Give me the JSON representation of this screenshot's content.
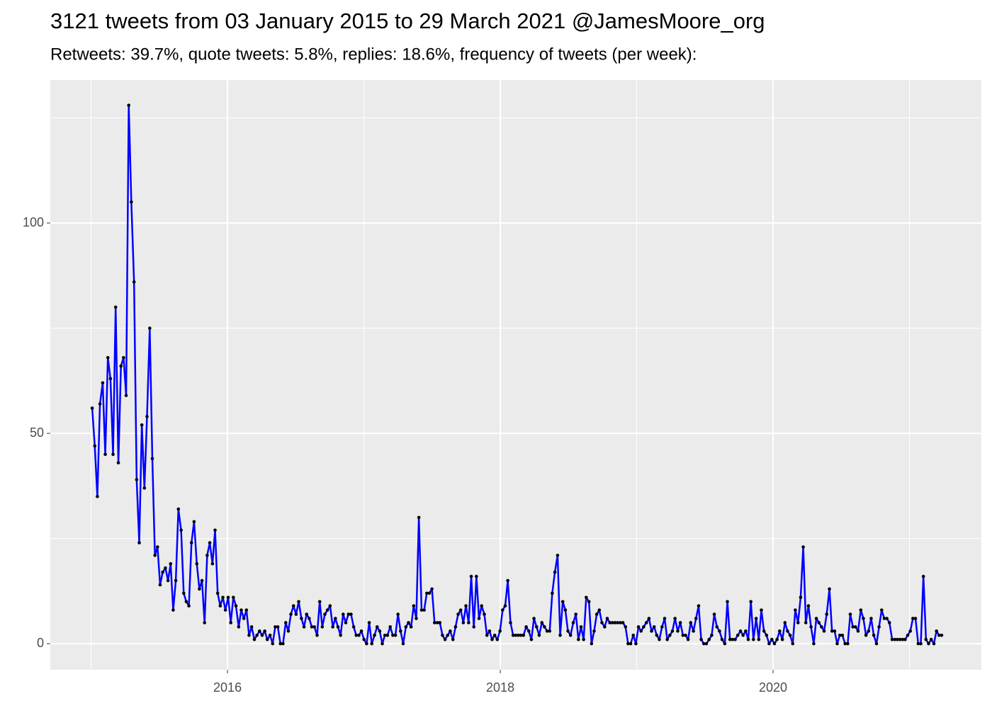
{
  "chart_data": {
    "type": "line",
    "title": "3121 tweets from 03 January 2015 to 29 March 2021 @JamesMoore_org",
    "subtitle": "Retweets: 39.7%, quote tweets: 5.8%, replies: 18.6%, frequency of tweets (per week):",
    "color": "#0000ff",
    "point_color": "#000000",
    "grid": true,
    "xlim": [
      2014.701,
      2021.527
    ],
    "xticks": [
      2016,
      2018,
      2020
    ],
    "minor_xticks": [
      2015,
      2017,
      2019,
      2021
    ],
    "ylim": [
      -6.2,
      134
    ],
    "yticks": [
      0,
      50,
      100
    ],
    "minor_yticks": [
      25,
      75,
      125
    ],
    "x": [
      2015.008,
      2015.027,
      2015.046,
      2015.065,
      2015.085,
      2015.104,
      2015.123,
      2015.142,
      2015.161,
      2015.18,
      2015.2,
      2015.219,
      2015.238,
      2015.257,
      2015.276,
      2015.295,
      2015.315,
      2015.334,
      2015.353,
      2015.372,
      2015.391,
      2015.41,
      2015.43,
      2015.449,
      2015.468,
      2015.487,
      2015.506,
      2015.525,
      2015.545,
      2015.564,
      2015.583,
      2015.602,
      2015.621,
      2015.64,
      2015.66,
      2015.679,
      2015.698,
      2015.717,
      2015.736,
      2015.755,
      2015.775,
      2015.794,
      2015.813,
      2015.832,
      2015.851,
      2015.87,
      2015.89,
      2015.909,
      2015.928,
      2015.947,
      2015.966,
      2015.985,
      2016.005,
      2016.024,
      2016.043,
      2016.062,
      2016.082,
      2016.101,
      2016.12,
      2016.139,
      2016.158,
      2016.177,
      2016.197,
      2016.216,
      2016.235,
      2016.254,
      2016.273,
      2016.292,
      2016.312,
      2016.331,
      2016.35,
      2016.369,
      2016.388,
      2016.407,
      2016.427,
      2016.446,
      2016.465,
      2016.484,
      2016.503,
      2016.522,
      2016.542,
      2016.561,
      2016.58,
      2016.599,
      2016.618,
      2016.637,
      2016.657,
      2016.676,
      2016.695,
      2016.714,
      2016.733,
      2016.752,
      2016.772,
      2016.791,
      2016.81,
      2016.829,
      2016.848,
      2016.867,
      2016.887,
      2016.906,
      2016.925,
      2016.944,
      2016.963,
      2016.982,
      2017.001,
      2017.02,
      2017.039,
      2017.058,
      2017.078,
      2017.097,
      2017.116,
      2017.135,
      2017.154,
      2017.173,
      2017.193,
      2017.212,
      2017.231,
      2017.25,
      2017.269,
      2017.288,
      2017.308,
      2017.327,
      2017.346,
      2017.365,
      2017.384,
      2017.403,
      2017.423,
      2017.442,
      2017.461,
      2017.48,
      2017.499,
      2017.518,
      2017.538,
      2017.557,
      2017.576,
      2017.595,
      2017.614,
      2017.633,
      2017.653,
      2017.672,
      2017.691,
      2017.71,
      2017.729,
      2017.748,
      2017.768,
      2017.787,
      2017.806,
      2017.825,
      2017.844,
      2017.863,
      2017.883,
      2017.902,
      2017.921,
      2017.94,
      2017.959,
      2017.978,
      2017.998,
      2018.017,
      2018.036,
      2018.055,
      2018.075,
      2018.094,
      2018.113,
      2018.132,
      2018.151,
      2018.17,
      2018.19,
      2018.209,
      2018.228,
      2018.247,
      2018.266,
      2018.285,
      2018.305,
      2018.324,
      2018.343,
      2018.362,
      2018.381,
      2018.4,
      2018.42,
      2018.439,
      2018.458,
      2018.477,
      2018.496,
      2018.515,
      2018.535,
      2018.554,
      2018.573,
      2018.592,
      2018.611,
      2018.63,
      2018.65,
      2018.669,
      2018.688,
      2018.707,
      2018.726,
      2018.745,
      2018.765,
      2018.784,
      2018.803,
      2018.822,
      2018.841,
      2018.86,
      2018.88,
      2018.899,
      2018.918,
      2018.937,
      2018.956,
      2018.975,
      2018.994,
      2019.013,
      2019.032,
      2019.051,
      2019.071,
      2019.09,
      2019.109,
      2019.128,
      2019.147,
      2019.166,
      2019.186,
      2019.205,
      2019.224,
      2019.243,
      2019.262,
      2019.281,
      2019.301,
      2019.32,
      2019.339,
      2019.358,
      2019.377,
      2019.396,
      2019.416,
      2019.435,
      2019.454,
      2019.473,
      2019.492,
      2019.511,
      2019.531,
      2019.55,
      2019.569,
      2019.588,
      2019.607,
      2019.626,
      2019.646,
      2019.665,
      2019.684,
      2019.703,
      2019.722,
      2019.741,
      2019.761,
      2019.78,
      2019.799,
      2019.818,
      2019.837,
      2019.856,
      2019.876,
      2019.895,
      2019.914,
      2019.933,
      2019.952,
      2019.971,
      2019.991,
      2020.01,
      2020.029,
      2020.048,
      2020.068,
      2020.087,
      2020.106,
      2020.125,
      2020.144,
      2020.163,
      2020.183,
      2020.202,
      2020.221,
      2020.24,
      2020.259,
      2020.278,
      2020.298,
      2020.317,
      2020.336,
      2020.355,
      2020.374,
      2020.393,
      2020.413,
      2020.432,
      2020.451,
      2020.47,
      2020.489,
      2020.508,
      2020.528,
      2020.547,
      2020.566,
      2020.585,
      2020.604,
      2020.623,
      2020.643,
      2020.662,
      2020.681,
      2020.7,
      2020.719,
      2020.738,
      2020.758,
      2020.777,
      2020.796,
      2020.815,
      2020.834,
      2020.853,
      2020.873,
      2020.892,
      2020.911,
      2020.93,
      2020.949,
      2020.968,
      2020.987,
      2021.006,
      2021.025,
      2021.044,
      2021.064,
      2021.083,
      2021.102,
      2021.121,
      2021.14,
      2021.159,
      2021.179,
      2021.198,
      2021.217,
      2021.236
    ],
    "values": [
      56,
      47,
      35,
      57,
      62,
      45,
      68,
      63,
      45,
      80,
      43,
      66,
      68,
      59,
      128,
      105,
      86,
      39,
      24,
      52,
      37,
      54,
      75,
      44,
      21,
      23,
      14,
      17,
      18,
      15,
      19,
      8,
      15,
      32,
      27,
      12,
      10,
      9,
      24,
      29,
      19,
      13,
      15,
      5,
      21,
      24,
      19,
      27,
      12,
      9,
      11,
      8,
      11,
      5,
      11,
      9,
      4,
      8,
      6,
      8,
      2,
      4,
      1,
      2,
      3,
      2,
      3,
      1,
      2,
      0,
      4,
      4,
      0,
      0,
      5,
      3,
      7,
      9,
      7,
      10,
      6,
      4,
      7,
      6,
      4,
      4,
      2,
      10,
      4,
      7,
      8,
      9,
      4,
      6,
      4,
      2,
      7,
      5,
      7,
      7,
      4,
      2,
      2,
      3,
      1,
      0,
      5,
      0,
      2,
      4,
      3,
      0,
      2,
      2,
      4,
      2,
      2,
      7,
      3,
      0,
      4,
      5,
      4,
      9,
      6,
      30,
      8,
      8,
      12,
      12,
      13,
      5,
      5,
      5,
      2,
      1,
      2,
      3,
      1,
      4,
      7,
      8,
      5,
      9,
      5,
      16,
      4,
      16,
      6,
      9,
      7,
      2,
      3,
      1,
      2,
      1,
      3,
      8,
      9,
      15,
      5,
      2,
      2,
      2,
      2,
      2,
      4,
      3,
      1,
      6,
      4,
      2,
      5,
      4,
      3,
      3,
      12,
      17,
      21,
      2,
      10,
      8,
      3,
      2,
      5,
      7,
      1,
      4,
      1,
      11,
      10,
      0,
      3,
      7,
      8,
      5,
      4,
      6,
      5,
      5,
      5,
      5,
      5,
      5,
      4,
      0,
      0,
      2,
      0,
      4,
      3,
      4,
      5,
      6,
      3,
      4,
      2,
      1,
      4,
      6,
      1,
      2,
      3,
      6,
      3,
      5,
      2,
      2,
      1,
      5,
      3,
      6,
      9,
      1,
      0,
      0,
      1,
      2,
      7,
      4,
      3,
      1,
      0,
      10,
      1,
      1,
      1,
      2,
      3,
      2,
      3,
      1,
      10,
      1,
      6,
      1,
      8,
      3,
      2,
      0,
      1,
      0,
      1,
      3,
      1,
      5,
      3,
      2,
      0,
      8,
      5,
      11,
      23,
      5,
      9,
      4,
      0,
      6,
      5,
      4,
      3,
      7,
      13,
      3,
      3,
      0,
      2,
      2,
      0,
      0,
      7,
      4,
      4,
      3,
      8,
      6,
      2,
      3,
      6,
      2,
      0,
      4,
      8,
      6,
      6,
      5,
      1,
      1,
      1,
      1,
      1,
      1,
      2,
      3,
      6,
      6,
      0,
      0,
      16,
      1,
      0,
      1,
      0,
      3,
      2,
      2
    ]
  }
}
